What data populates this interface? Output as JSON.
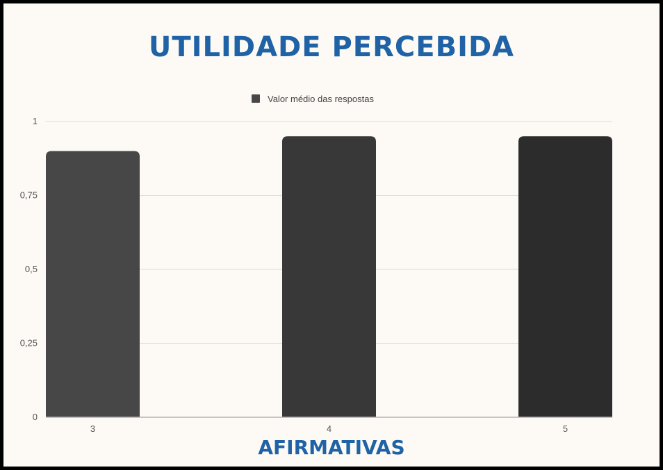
{
  "chart_data": {
    "type": "bar",
    "title": "UTILIDADE PERCEBIDA",
    "xlabel": "AFIRMATIVAS",
    "ylabel": "",
    "categories": [
      "3",
      "4",
      "5"
    ],
    "series": [
      {
        "name": "Valor médio das respostas",
        "values": [
          0.9,
          0.95,
          0.95
        ]
      }
    ],
    "ylim": [
      0,
      1
    ],
    "yticks": [
      0,
      0.25,
      0.5,
      0.75,
      1
    ],
    "ytick_labels": [
      "0",
      "0,25",
      "0,5",
      "0,75",
      "1"
    ],
    "grid": true,
    "legend": "top-center",
    "colors": {
      "bars": [
        "#474747",
        "#383838",
        "#2c2c2c"
      ],
      "legend_swatch": "#474747",
      "title": "#1f63a6",
      "background": "#fdfaf5"
    }
  }
}
